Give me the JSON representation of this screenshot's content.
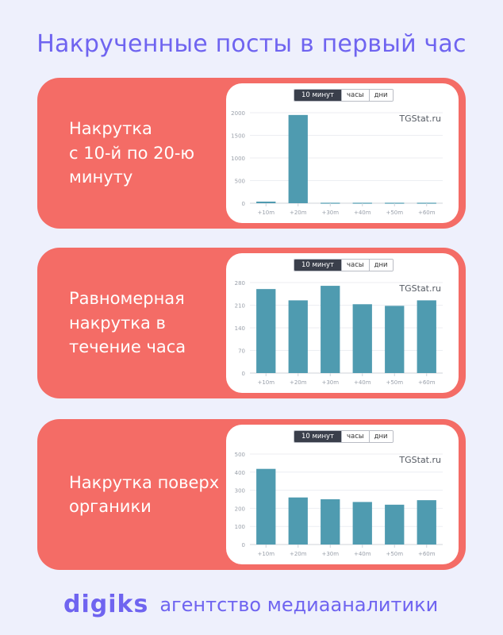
{
  "page": {
    "title": "Накрученные посты в первый час",
    "brand_logo": "digiks",
    "brand_tagline": "агентство медиааналитики"
  },
  "colors": {
    "background": "#eef0fc",
    "card": "#f46c66",
    "bar": "#4f9bb0",
    "accent": "#6f64f0"
  },
  "cards": [
    {
      "caption_lines": [
        "Накрутка",
        "с 10-й по 20-ю",
        "минуту"
      ]
    },
    {
      "caption_lines": [
        "Равномерная",
        "накрутка в",
        "течение часа"
      ]
    },
    {
      "caption_lines": [
        "Накрутка поверх",
        "органики"
      ]
    }
  ],
  "tabs": [
    "10 минут",
    "часы",
    "дни"
  ],
  "active_tab": "10 минут",
  "watermark": "TGStat.ru",
  "chart_data": [
    {
      "type": "bar",
      "categories": [
        "+10m",
        "+20m",
        "+30m",
        "+40m",
        "+50m",
        "+60m"
      ],
      "values": [
        35,
        1950,
        10,
        10,
        10,
        10
      ],
      "yticks": [
        "0",
        "500",
        "1000",
        "1500",
        "2000"
      ],
      "ylim": [
        0,
        2000
      ],
      "grid": true
    },
    {
      "type": "bar",
      "categories": [
        "+10m",
        "+20m",
        "+30m",
        "+40m",
        "+50m",
        "+60m"
      ],
      "values": [
        260,
        225,
        270,
        213,
        208,
        225
      ],
      "yticks": [
        "0",
        "70",
        "140",
        "210",
        "280"
      ],
      "ylim": [
        0,
        280
      ],
      "grid": true
    },
    {
      "type": "bar",
      "categories": [
        "+10m",
        "+20m",
        "+30m",
        "+40m",
        "+50m",
        "+60m"
      ],
      "values": [
        418,
        260,
        250,
        235,
        220,
        245
      ],
      "yticks": [
        "0",
        "100",
        "200",
        "300",
        "400",
        "500"
      ],
      "ylim": [
        0,
        500
      ],
      "grid": true
    }
  ]
}
